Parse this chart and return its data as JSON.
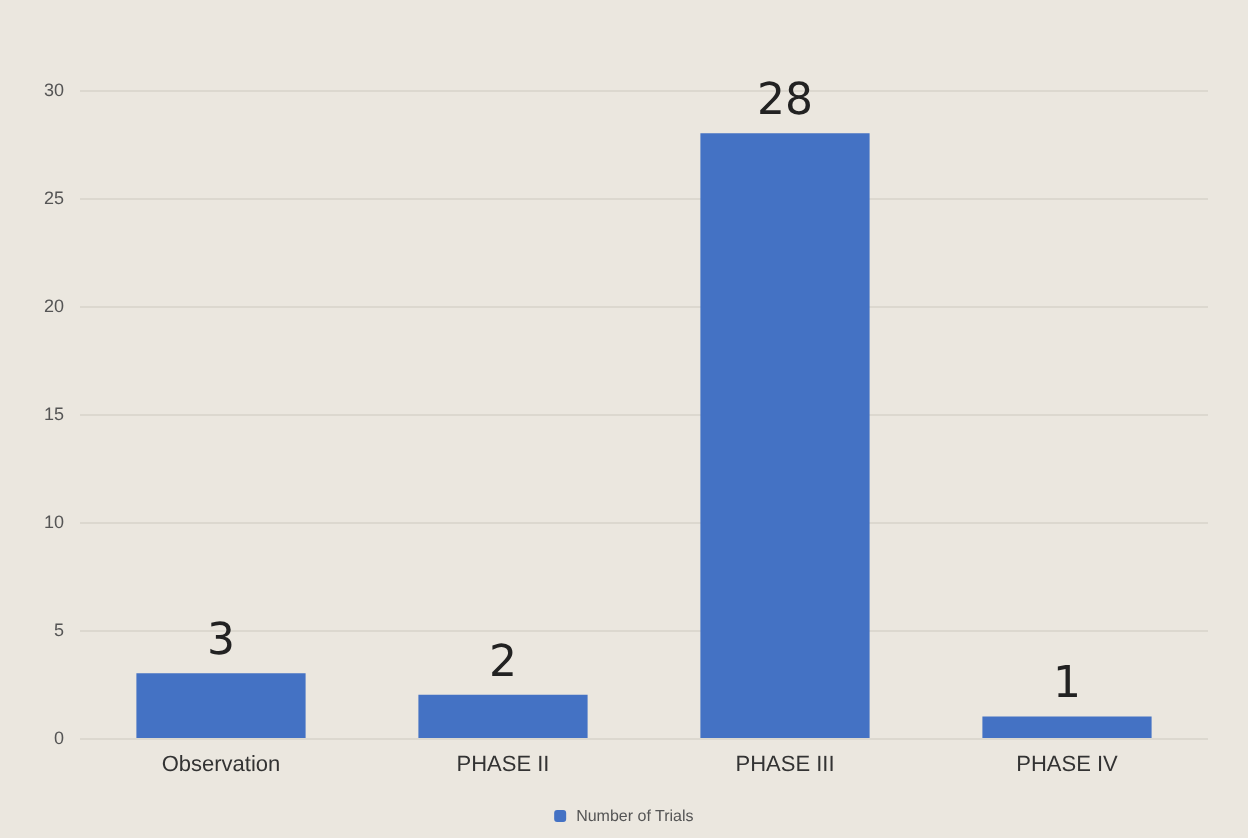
{
  "chart_data": {
    "type": "bar",
    "categories": [
      "Observation",
      "PHASE II",
      "PHASE III",
      "PHASE IV"
    ],
    "series": [
      {
        "name": "Number of Trials",
        "color": "#4472c4",
        "values": [
          3,
          2,
          28,
          1
        ]
      }
    ],
    "ylim": [
      0,
      30
    ],
    "yticks": [
      0,
      5,
      10,
      15,
      20,
      25,
      30
    ],
    "grid": "y",
    "legend": "bottom",
    "data_labels": true
  }
}
